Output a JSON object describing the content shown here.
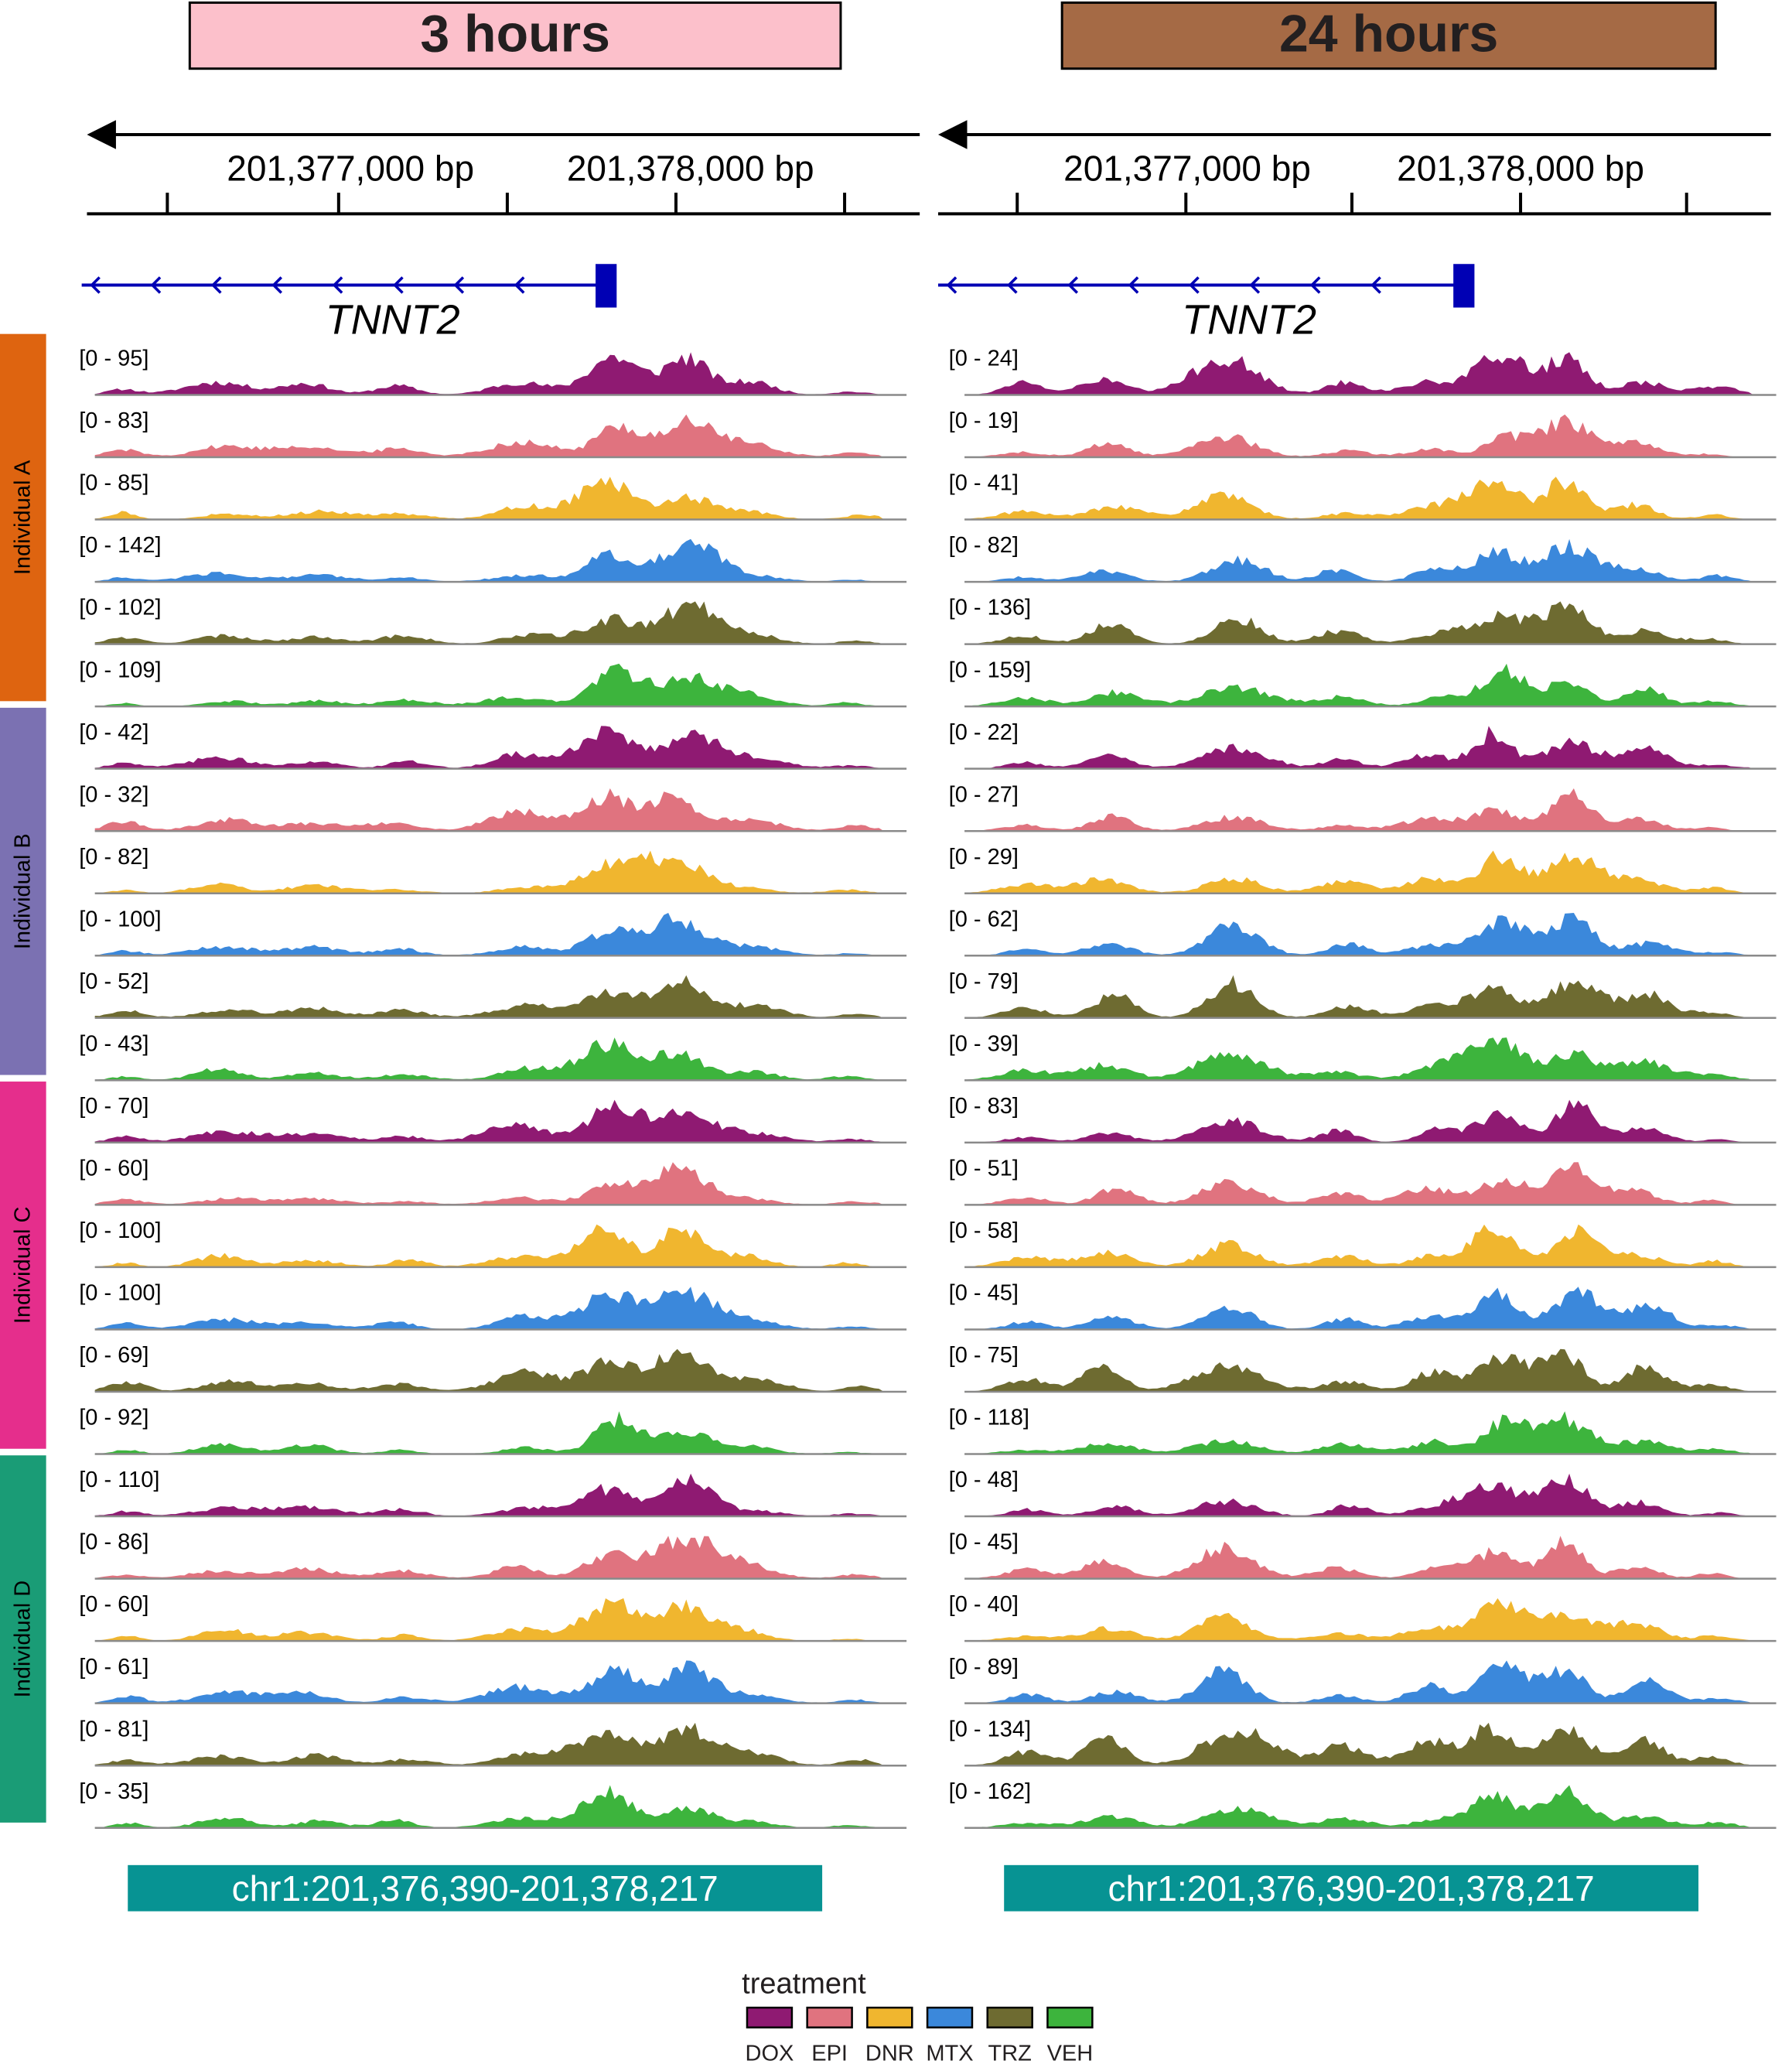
{
  "panels": [
    {
      "timepoint": "3 hours",
      "header_color": "#fcc0cb",
      "ticks": [
        "201,377,000 bp",
        "201,378,000 bp"
      ],
      "gene": "TNNT2",
      "locus": "chr1:201,376,390-201,378,217",
      "ranges": [
        "[0 - 95]",
        "[0 - 83]",
        "[0 - 85]",
        "[0 - 142]",
        "[0 - 102]",
        "[0 - 109]",
        "[0 - 42]",
        "[0 - 32]",
        "[0 - 82]",
        "[0 - 100]",
        "[0 - 52]",
        "[0 - 43]",
        "[0 - 70]",
        "[0 - 60]",
        "[0 - 100]",
        "[0 - 100]",
        "[0 - 69]",
        "[0 - 92]",
        "[0 - 110]",
        "[0 - 86]",
        "[0 - 60]",
        "[0 - 61]",
        "[0 - 81]",
        "[0 - 35]"
      ]
    },
    {
      "timepoint": "24 hours",
      "header_color": "#a56a45",
      "ticks": [
        "201,377,000 bp",
        "201,378,000 bp"
      ],
      "gene": "TNNT2",
      "locus": "chr1:201,376,390-201,378,217",
      "ranges": [
        "[0 - 24]",
        "[0 - 19]",
        "[0 - 41]",
        "[0 - 82]",
        "[0 - 136]",
        "[0 - 159]",
        "[0 - 22]",
        "[0 - 27]",
        "[0 - 29]",
        "[0 - 62]",
        "[0 - 79]",
        "[0 - 39]",
        "[0 - 83]",
        "[0 - 51]",
        "[0 - 58]",
        "[0 - 45]",
        "[0 - 75]",
        "[0 - 118]",
        "[0 - 48]",
        "[0 - 45]",
        "[0 - 40]",
        "[0 - 89]",
        "[0 - 134]",
        "[0 - 162]"
      ]
    }
  ],
  "individuals": [
    {
      "label": "Individual A",
      "color": "#de6410"
    },
    {
      "label": "Individual B",
      "color": "#7b71b2"
    },
    {
      "label": "Individual C",
      "color": "#e52e8c"
    },
    {
      "label": "Individual D",
      "color": "#1a9c76"
    }
  ],
  "legend": {
    "title": "treatment",
    "items": [
      {
        "label": "DOX",
        "color": "#8f1a72"
      },
      {
        "label": "EPI",
        "color": "#e0737f"
      },
      {
        "label": "DNR",
        "color": "#f0b62f"
      },
      {
        "label": "MTX",
        "color": "#3b88db"
      },
      {
        "label": "TRZ",
        "color": "#6e6b31"
      },
      {
        "label": "VEH",
        "color": "#3db43d"
      }
    ]
  },
  "colors": {
    "gene": "#0000b4",
    "locus_box": "#079393",
    "baseline": "#8a8a8a"
  }
}
